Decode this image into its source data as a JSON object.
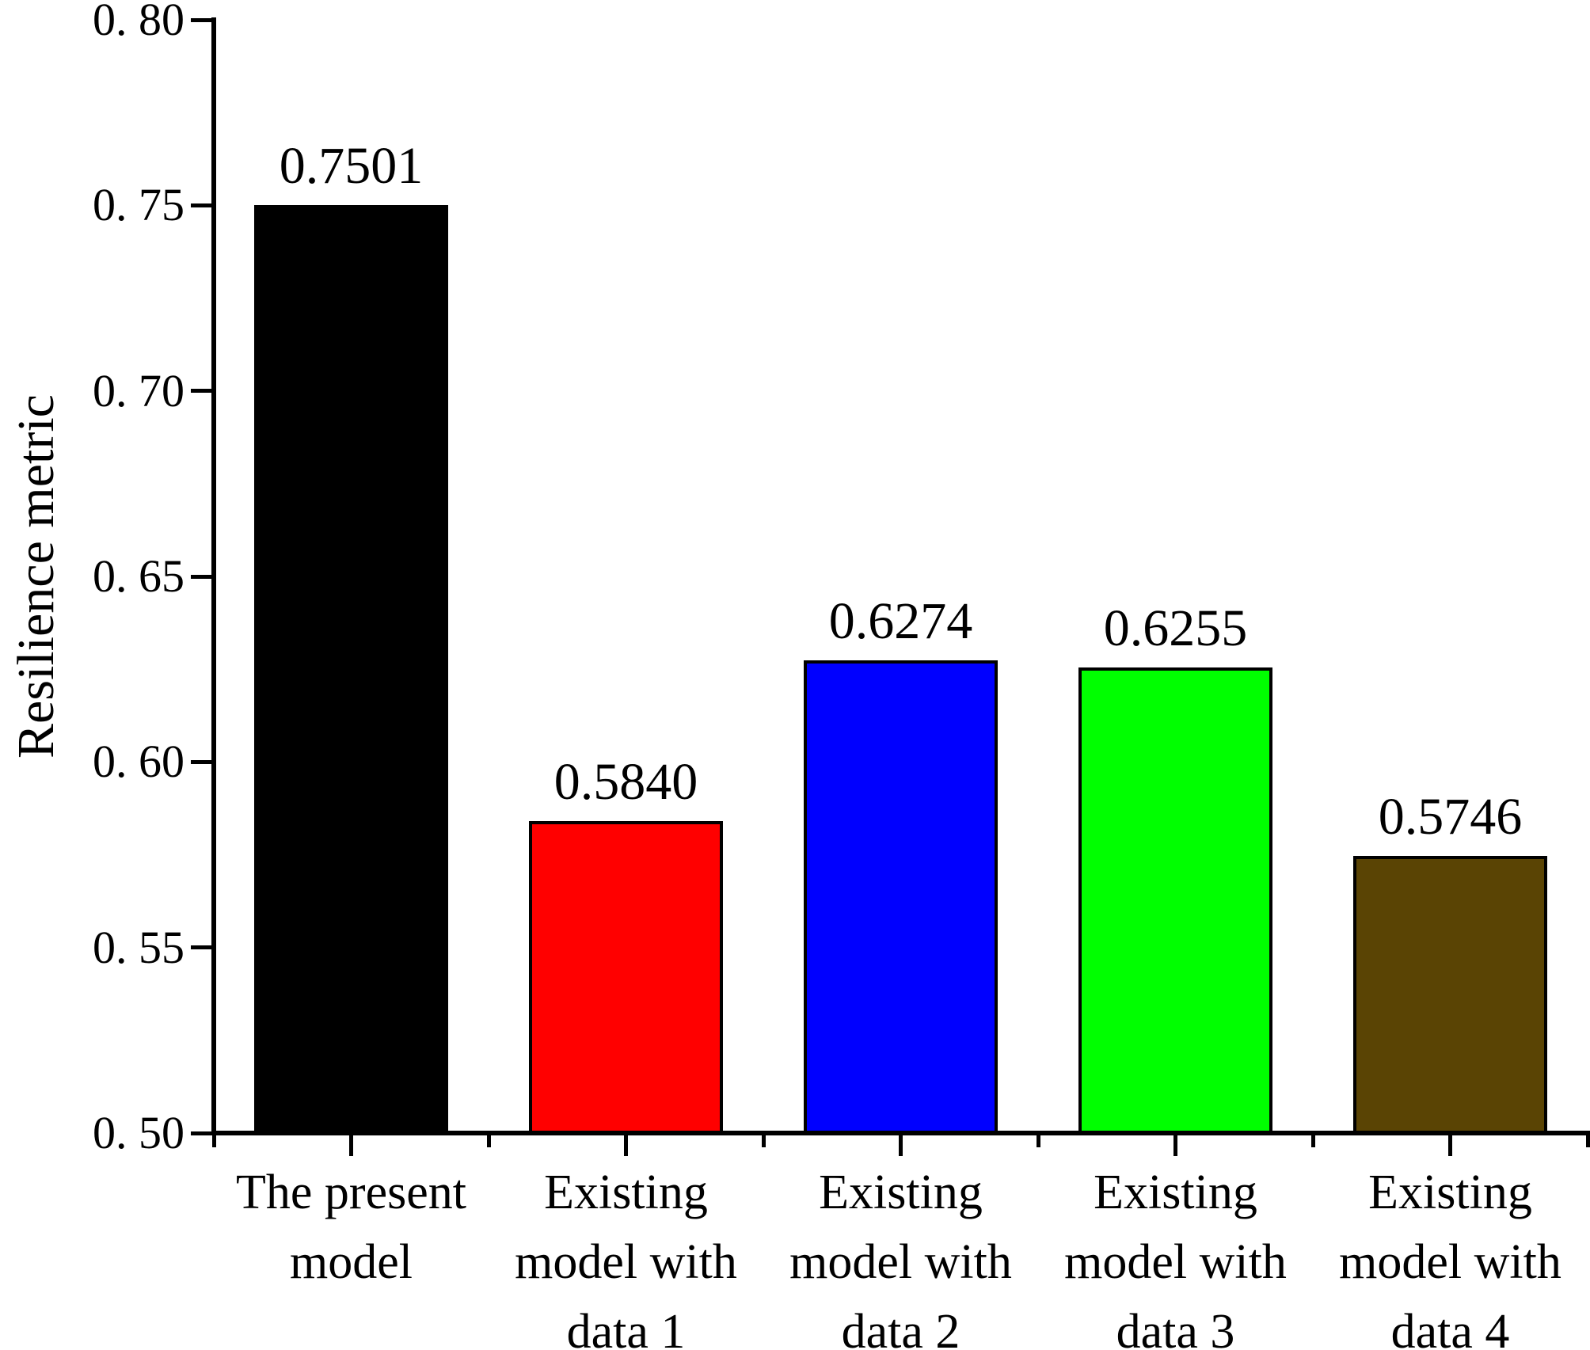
{
  "chart_data": {
    "type": "bar",
    "title": "",
    "xlabel": "",
    "ylabel": "Resilience metric",
    "ylim": [
      0.5,
      0.8
    ],
    "ytick_step": 0.05,
    "yticks": [
      0.5,
      0.55,
      0.6,
      0.65,
      0.7,
      0.75,
      0.8
    ],
    "ytick_labels": [
      "0. 50",
      "0. 55",
      "0. 60",
      "0. 65",
      "0. 70",
      "0. 75",
      "0. 80"
    ],
    "grid": false,
    "legend": "none",
    "categories": [
      "The present model",
      "Existing model with data 1",
      "Existing model with data 2",
      "Existing model with data 3",
      "Existing model with data 4"
    ],
    "category_label_lines": [
      [
        "The present",
        "model"
      ],
      [
        "Existing",
        "model with",
        "data 1"
      ],
      [
        "Existing",
        "model with",
        "data 2"
      ],
      [
        "Existing",
        "model with",
        "data 3"
      ],
      [
        "Existing",
        "model with",
        "data 4"
      ]
    ],
    "values": [
      0.7501,
      0.584,
      0.6274,
      0.6255,
      0.5746
    ],
    "value_labels": [
      "0.7501",
      "0.5840",
      "0.6274",
      "0.6255",
      "0.5746"
    ],
    "bar_colors": [
      "#000000",
      "#ff0000",
      "#0000ff",
      "#00ff00",
      "#5a4404"
    ],
    "bar_border_color": "#000000",
    "axis_color": "#000000",
    "text_color": "#000000",
    "background_color": "#ffffff"
  }
}
